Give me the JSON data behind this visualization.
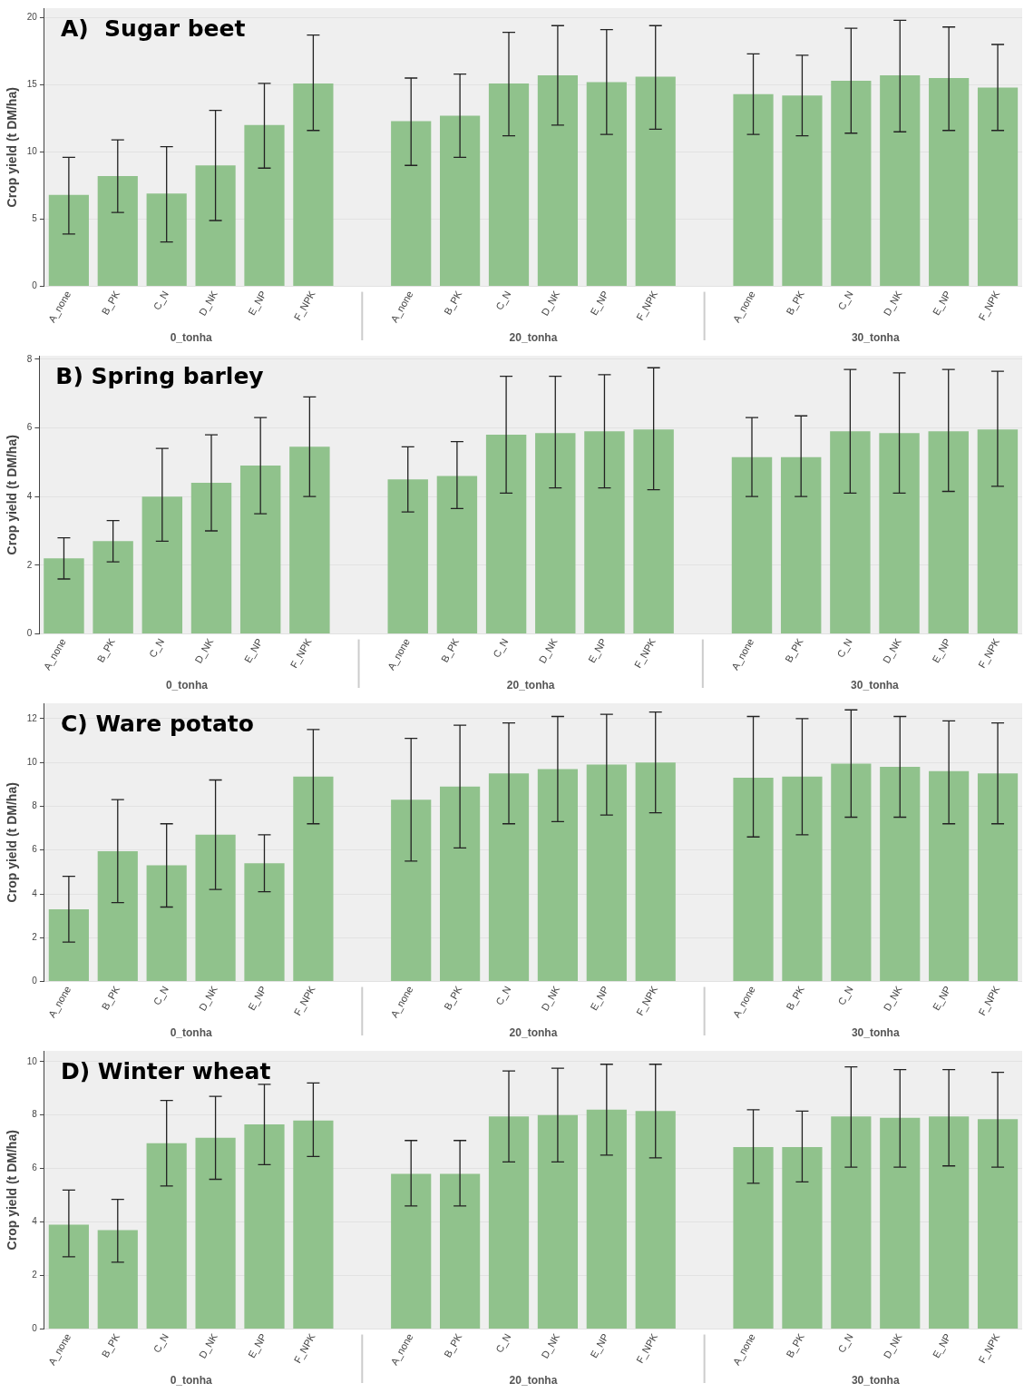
{
  "chart_data": [
    {
      "type": "bar",
      "title": "A)  Sugar beet",
      "ylabel": "Crop yield (t DM/ha)",
      "categories": [
        "A_none",
        "B_PK",
        "C_N",
        "D_NK",
        "E_NP",
        "F_NPK",
        "A_none",
        "B_PK",
        "C_N",
        "D_NK",
        "E_NP",
        "F_NPK",
        "A_none",
        "B_PK",
        "C_N",
        "D_NK",
        "E_NP",
        "F_NPK"
      ],
      "annotations": [
        "0_tonha",
        "20_tonha",
        "30_tonha"
      ],
      "color": "#90c28c",
      "grid": "y",
      "ylim": [
        0,
        20.7
      ],
      "yticks": [
        0,
        5,
        10,
        15,
        20
      ],
      "values": [
        6.8,
        8.2,
        6.9,
        9.0,
        12.0,
        15.1,
        12.3,
        12.7,
        15.1,
        15.7,
        15.2,
        15.6,
        14.3,
        14.2,
        15.3,
        15.7,
        15.5,
        14.8
      ],
      "errors": [
        [
          3.9,
          9.6
        ],
        [
          5.5,
          10.9
        ],
        [
          3.3,
          10.4
        ],
        [
          4.9,
          13.1
        ],
        [
          8.8,
          15.1
        ],
        [
          11.6,
          18.7
        ],
        [
          9.0,
          15.5
        ],
        [
          9.6,
          15.8
        ],
        [
          11.2,
          18.9
        ],
        [
          12.0,
          19.4
        ],
        [
          11.3,
          19.1
        ],
        [
          11.7,
          19.4
        ],
        [
          11.3,
          17.3
        ],
        [
          11.2,
          17.2
        ],
        [
          11.4,
          19.2
        ],
        [
          11.5,
          19.8
        ],
        [
          11.6,
          19.3
        ],
        [
          11.6,
          18.0
        ]
      ]
    },
    {
      "type": "bar",
      "title": "B) Spring barley",
      "ylabel": "Crop yield (t DM/ha)",
      "categories": [
        "A_none",
        "B_PK",
        "C_N",
        "D_NK",
        "E_NP",
        "F_NPK",
        "A_none",
        "B_PK",
        "C_N",
        "D_NK",
        "E_NP",
        "F_NPK",
        "A_none",
        "B_PK",
        "C_N",
        "D_NK",
        "E_NP",
        "F_NPK"
      ],
      "annotations": [
        "0_tonha",
        "20_tonha",
        "30_tonha"
      ],
      "color": "#90c28c",
      "grid": "y",
      "ylim": [
        0,
        8.1
      ],
      "yticks": [
        0,
        2,
        4,
        6,
        8
      ],
      "values": [
        2.2,
        2.7,
        4.0,
        4.4,
        4.9,
        5.45,
        4.5,
        4.6,
        5.8,
        5.85,
        5.9,
        5.95,
        5.15,
        5.15,
        5.9,
        5.85,
        5.9,
        5.95
      ],
      "errors": [
        [
          1.6,
          2.8
        ],
        [
          2.1,
          3.3
        ],
        [
          2.7,
          5.4
        ],
        [
          3.0,
          5.8
        ],
        [
          3.5,
          6.3
        ],
        [
          4.0,
          6.9
        ],
        [
          3.55,
          5.45
        ],
        [
          3.65,
          5.6
        ],
        [
          4.1,
          7.5
        ],
        [
          4.25,
          7.5
        ],
        [
          4.25,
          7.55
        ],
        [
          4.2,
          7.75
        ],
        [
          4.0,
          6.3
        ],
        [
          4.0,
          6.35
        ],
        [
          4.1,
          7.7
        ],
        [
          4.1,
          7.6
        ],
        [
          4.15,
          7.7
        ],
        [
          4.3,
          7.65
        ]
      ]
    },
    {
      "type": "bar",
      "title": "C) Ware potato",
      "ylabel": "Crop yield (t DM/ha)",
      "categories": [
        "A_none",
        "B_PK",
        "C_N",
        "D_NK",
        "E_NP",
        "F_NPK",
        "A_none",
        "B_PK",
        "C_N",
        "D_NK",
        "E_NP",
        "F_NPK",
        "A_none",
        "B_PK",
        "C_N",
        "D_NK",
        "E_NP",
        "F_NPK"
      ],
      "annotations": [
        "0_tonha",
        "20_tonha",
        "30_tonha"
      ],
      "color": "#90c28c",
      "grid": "y",
      "ylim": [
        0,
        12.7
      ],
      "yticks": [
        0,
        2,
        4,
        6,
        8,
        10,
        12
      ],
      "values": [
        3.3,
        5.95,
        5.3,
        6.7,
        5.4,
        9.35,
        8.3,
        8.9,
        9.5,
        9.7,
        9.9,
        10.0,
        9.3,
        9.35,
        9.95,
        9.8,
        9.6,
        9.5
      ],
      "errors": [
        [
          1.8,
          4.8
        ],
        [
          3.6,
          8.3
        ],
        [
          3.4,
          7.2
        ],
        [
          4.2,
          9.2
        ],
        [
          4.1,
          6.7
        ],
        [
          7.2,
          11.5
        ],
        [
          5.5,
          11.1
        ],
        [
          6.1,
          11.7
        ],
        [
          7.2,
          11.8
        ],
        [
          7.3,
          12.1
        ],
        [
          7.6,
          12.2
        ],
        [
          7.7,
          12.3
        ],
        [
          6.6,
          12.1
        ],
        [
          6.7,
          12.0
        ],
        [
          7.5,
          12.4
        ],
        [
          7.5,
          12.1
        ],
        [
          7.2,
          11.9
        ],
        [
          7.2,
          11.8
        ]
      ]
    },
    {
      "type": "bar",
      "title": "D) Winter wheat",
      "ylabel": "Crop yield (t DM/ha)",
      "categories": [
        "A_none",
        "B_PK",
        "C_N",
        "D_NK",
        "E_NP",
        "F_NPK",
        "A_none",
        "B_PK",
        "C_N",
        "D_NK",
        "E_NP",
        "F_NPK",
        "A_none",
        "B_PK",
        "C_N",
        "D_NK",
        "E_NP",
        "F_NPK"
      ],
      "annotations": [
        "0_tonha",
        "20_tonha",
        "30_tonha"
      ],
      "color": "#90c28c",
      "grid": "y",
      "ylim": [
        0,
        10.4
      ],
      "yticks": [
        0,
        2,
        4,
        6,
        8,
        10
      ],
      "values": [
        3.9,
        3.7,
        6.95,
        7.15,
        7.65,
        7.8,
        5.8,
        5.8,
        7.95,
        8.0,
        8.2,
        8.15,
        6.8,
        6.8,
        7.95,
        7.9,
        7.95,
        7.85
      ],
      "errors": [
        [
          2.7,
          5.2
        ],
        [
          2.5,
          4.85
        ],
        [
          5.35,
          8.55
        ],
        [
          5.6,
          8.7
        ],
        [
          6.15,
          9.15
        ],
        [
          6.45,
          9.2
        ],
        [
          4.6,
          7.05
        ],
        [
          4.6,
          7.05
        ],
        [
          6.25,
          9.65
        ],
        [
          6.25,
          9.75
        ],
        [
          6.5,
          9.9
        ],
        [
          6.4,
          9.9
        ],
        [
          5.45,
          8.2
        ],
        [
          5.5,
          8.15
        ],
        [
          6.05,
          9.8
        ],
        [
          6.05,
          9.7
        ],
        [
          6.1,
          9.7
        ],
        [
          6.05,
          9.6
        ]
      ]
    }
  ]
}
